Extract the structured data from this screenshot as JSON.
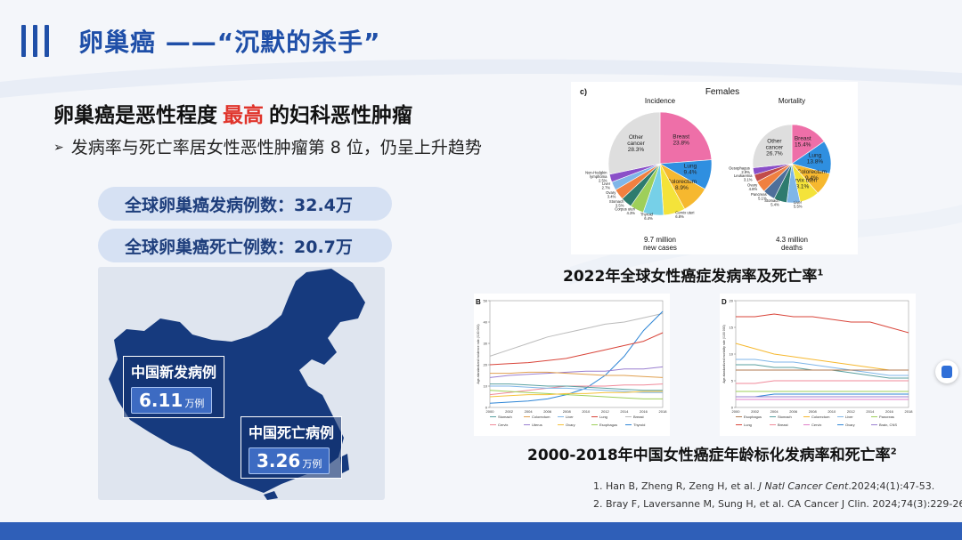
{
  "header": {
    "title": "卵巢癌 ——“沉默的杀手”"
  },
  "headline": {
    "prefix": "卵巢癌是恶性程度",
    "highlight": "最高",
    "suffix": "的妇科恶性肿瘤"
  },
  "bullet": {
    "arrow": "➢",
    "text": "发病率与死亡率居女性恶性肿瘤第 8 位，仍呈上升趋势"
  },
  "stats": [
    {
      "text": "全球卵巢癌发病例数：32.4万"
    },
    {
      "text": "全球卵巢癌死亡例数：20.7万"
    }
  ],
  "map": {
    "incidence": {
      "label": "中国新发病例",
      "value": "6.11",
      "unit": "万例"
    },
    "deaths": {
      "label": "中国死亡病例",
      "value": "3.26",
      "unit": "万例"
    }
  },
  "panel_c": {
    "tag": "c)",
    "title": "Females",
    "pies": [
      {
        "heading": "Incidence",
        "footer1": "9.7 million",
        "footer2": "new cases",
        "slices": [
          {
            "name": "Breast",
            "value": 23.8,
            "color": "#ee6fa8",
            "label": "Breast\n23.8%"
          },
          {
            "name": "Lung",
            "value": 9.4,
            "color": "#2f8fe0",
            "label": "Lung\n9.4%"
          },
          {
            "name": "Colorectum",
            "value": 8.9,
            "color": "#f6b82f",
            "label": "Colorectum\n8.9%"
          },
          {
            "name": "Cervix uteri",
            "value": 6.8,
            "color": "#f4e33a",
            "label": "Cervix uteri\n6.8%"
          },
          {
            "name": "Thyroid",
            "value": 6.4,
            "color": "#76d0e8",
            "label": "Thyroid\n6.4%"
          },
          {
            "name": "Corpus uteri",
            "value": 4.3,
            "color": "#9ecf5a",
            "label": "Corpus uteri\n4.3%"
          },
          {
            "name": "Stomach",
            "value": 3.5,
            "color": "#2e7b6e",
            "label": "Stomach\n3.5%"
          },
          {
            "name": "Ovary",
            "value": 3.4,
            "color": "#f08040",
            "label": "Ovary\n3.4%"
          },
          {
            "name": "Liver",
            "value": 2.7,
            "color": "#7fb6e8",
            "label": "Liver\n2.7%"
          },
          {
            "name": "Non-Hodgkin lymphoma",
            "value": 2.5,
            "color": "#8a4fc8",
            "label": "Non-Hodgkin\nlymphoma\n2.5%"
          },
          {
            "name": "Other cancer",
            "value": 28.3,
            "color": "#dedede",
            "label": "Other\ncancer\n28.3%"
          }
        ]
      },
      {
        "heading": "Mortality",
        "footer1": "4.3 million",
        "footer2": "deaths",
        "slices": [
          {
            "name": "Breast",
            "value": 15.4,
            "color": "#ee6fa8",
            "label": "Breast\n15.4%"
          },
          {
            "name": "Lung",
            "value": 13.8,
            "color": "#2f8fe0",
            "label": "Lung\n13.8%"
          },
          {
            "name": "Colorectum",
            "value": 9.4,
            "color": "#f6b82f",
            "label": "Colorectum\n9.4%"
          },
          {
            "name": "Cervix uteri",
            "value": 8.1,
            "color": "#f4e33a",
            "label": "Cervix uteri\n8.1%"
          },
          {
            "name": "Liver",
            "value": 5.5,
            "color": "#7fb6e8",
            "label": "Liver\n5.5%"
          },
          {
            "name": "Stomach",
            "value": 5.4,
            "color": "#2e7b6e",
            "label": "Stomach\n5.4%"
          },
          {
            "name": "Pancreas",
            "value": 5.1,
            "color": "#4f6f9a",
            "label": "Pancreas\n5.1%"
          },
          {
            "name": "Ovary",
            "value": 4.8,
            "color": "#f08040",
            "label": "Ovary\n4.8%"
          },
          {
            "name": "Leukaemia",
            "value": 3.1,
            "color": "#c14b4b",
            "label": "Leukaemia\n3.1%"
          },
          {
            "name": "Oesophagus",
            "value": 2.9,
            "color": "#8a4fc8",
            "label": "Oesophagus\n2.9%"
          },
          {
            "name": "Other cancer",
            "value": 26.7,
            "color": "#dedede",
            "label": "Other\ncancer\n26.7%"
          }
        ]
      }
    ]
  },
  "caption_top": {
    "text": "2022年全球女性癌症发病率及死亡率",
    "sup": "1"
  },
  "caption_bottom": {
    "text": "2000-2018年中国女性癌症年龄标化发病率和死亡率",
    "sup": "2"
  },
  "chart_data": [
    {
      "type": "line",
      "panel": "B",
      "ylabel": "Age-standardized incidence rate (/100 000)",
      "x": [
        2000,
        2002,
        2004,
        2006,
        2008,
        2010,
        2012,
        2014,
        2016,
        2018
      ],
      "ylim": [
        0,
        50
      ],
      "yticks": [
        0,
        10,
        20,
        30,
        40,
        50
      ],
      "xticks": [
        2000,
        2002,
        2004,
        2006,
        2008,
        2010,
        2012,
        2014,
        2016,
        2018
      ],
      "series": [
        {
          "name": "Breast",
          "color": "#bbbbbb",
          "values": [
            24,
            27,
            30,
            33,
            35,
            37,
            39,
            40,
            42,
            44
          ]
        },
        {
          "name": "Thyroid",
          "color": "#2f86d6",
          "values": [
            2,
            2.5,
            3,
            4,
            6,
            9,
            15,
            24,
            36,
            45
          ]
        },
        {
          "name": "Lung",
          "color": "#d9453a",
          "values": [
            20,
            20.5,
            21,
            22,
            23,
            25,
            27,
            29,
            31,
            35
          ]
        },
        {
          "name": "Uterus",
          "color": "#9a7fd0",
          "values": [
            14,
            15,
            15.5,
            16,
            16.5,
            17,
            17,
            18,
            18,
            19
          ]
        },
        {
          "name": "Colorectum",
          "color": "#e0a050",
          "values": [
            16,
            16,
            16.5,
            16.5,
            16,
            15.5,
            15,
            15,
            14.5,
            14
          ]
        },
        {
          "name": "Cervix",
          "color": "#f08a9a",
          "values": [
            6,
            7,
            8,
            9,
            10,
            10,
            10,
            10.5,
            10.5,
            11
          ]
        },
        {
          "name": "Stomach",
          "color": "#5aa0a0",
          "values": [
            11,
            11,
            10.5,
            10,
            10,
            9.5,
            9,
            8.5,
            8,
            8
          ]
        },
        {
          "name": "Liver",
          "color": "#7fb6e8",
          "values": [
            10,
            10,
            9.5,
            9,
            9,
            8.5,
            8,
            7.5,
            7,
            7
          ]
        },
        {
          "name": "Esophagus",
          "color": "#9ecf5a",
          "values": [
            8,
            7.5,
            7,
            6.5,
            6,
            5.5,
            5,
            4.5,
            4,
            4
          ]
        },
        {
          "name": "Ovary",
          "color": "#f6c23a",
          "values": [
            5,
            5.5,
            6,
            6,
            6.5,
            6.5,
            7,
            7,
            7.5,
            7.5
          ]
        }
      ],
      "legend_rows": [
        [
          "Stomach",
          "Colorectum",
          "Liver",
          "Lung",
          "Breast"
        ],
        [
          "Cervix",
          "Uterus",
          "Ovary",
          "Esophagus",
          "Thyroid"
        ]
      ]
    },
    {
      "type": "line",
      "panel": "D",
      "ylabel": "Age-standardized mortality rate (/100 000)",
      "x": [
        2000,
        2002,
        2004,
        2006,
        2008,
        2010,
        2012,
        2014,
        2016,
        2018
      ],
      "ylim": [
        0,
        20
      ],
      "yticks": [
        0,
        5,
        10,
        15,
        20
      ],
      "xticks": [
        2000,
        2002,
        2004,
        2006,
        2008,
        2010,
        2012,
        2014,
        2016,
        2018
      ],
      "series": [
        {
          "name": "Lung",
          "color": "#d9453a",
          "values": [
            17,
            17,
            17.5,
            17,
            17,
            16.5,
            16,
            16,
            15,
            14
          ]
        },
        {
          "name": "Colorectum",
          "color": "#f6b82f",
          "values": [
            12,
            11,
            10,
            9.5,
            9,
            8.5,
            8,
            7.5,
            7,
            7
          ]
        },
        {
          "name": "Liver",
          "color": "#7fb6e8",
          "values": [
            9,
            9,
            8.5,
            8.5,
            8,
            7.5,
            7,
            6.5,
            6,
            6
          ]
        },
        {
          "name": "Stomach",
          "color": "#5aa0a0",
          "values": [
            8,
            8,
            7.5,
            7.5,
            7,
            7,
            6.5,
            6,
            5.5,
            5.5
          ]
        },
        {
          "name": "Esophagus",
          "color": "#b07a50",
          "values": [
            7,
            7,
            7,
            7,
            7,
            7,
            7,
            7,
            7,
            7
          ]
        },
        {
          "name": "Breast",
          "color": "#f08a9a",
          "values": [
            4.5,
            4.5,
            5,
            5,
            5,
            5,
            5,
            5,
            5,
            5
          ]
        },
        {
          "name": "Pancreas",
          "color": "#9ecf5a",
          "values": [
            3,
            3,
            3,
            3,
            3,
            3,
            3,
            3,
            3,
            3
          ]
        },
        {
          "name": "Ovary",
          "color": "#2f86d6",
          "values": [
            2,
            2,
            2.5,
            2.5,
            2.5,
            2.5,
            2.5,
            2.5,
            2.5,
            2.5
          ]
        },
        {
          "name": "Brain, CNS",
          "color": "#9a7fd0",
          "values": [
            2,
            2,
            2,
            2,
            2,
            2,
            2,
            2,
            2,
            2
          ]
        },
        {
          "name": "Cervix",
          "color": "#e07fc8",
          "values": [
            1.5,
            1.5,
            1.5,
            1.5,
            1.5,
            1.5,
            1.5,
            1.5,
            1.5,
            1.5
          ]
        }
      ],
      "legend_rows": [
        [
          "Esophagus",
          "Stomach",
          "Colorectum",
          "Liver",
          "Pancreas"
        ],
        [
          "Lung",
          "Breast",
          "Cervix",
          "Ovary",
          "Brain, CNS"
        ]
      ]
    }
  ],
  "references": [
    {
      "normal": "1. Han B, Zheng R, Zeng H, et al. ",
      "italic": "J Natl Cancer Cent",
      "rest": ".2024;4(1):47-53."
    },
    {
      "normal": "2. Bray F, Laversanne M, Sung H, et al. CA Cancer J Clin. 2024;74(3):229-263.",
      "italic": "",
      "rest": ""
    }
  ],
  "colors": {
    "brand": "#1f4fa8",
    "highlight": "#e0342b",
    "map": "#163a7e",
    "pill": "#d6e1f3"
  }
}
